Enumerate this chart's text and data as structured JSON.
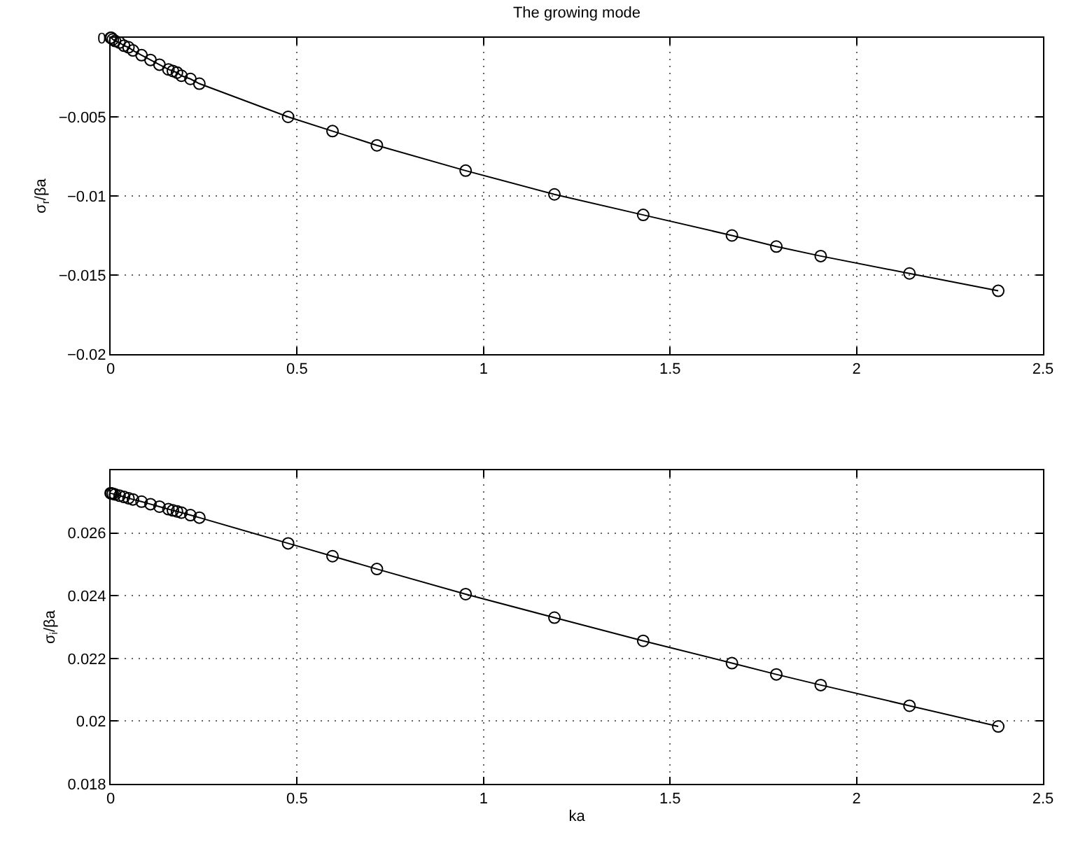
{
  "chart_data": [
    {
      "type": "line",
      "title": "The growing mode",
      "ylabel": "σ$_{r}$/βa",
      "marker": "circle",
      "line_style": "solid",
      "grid": true,
      "x": [
        0,
        0.002,
        0.006,
        0.012,
        0.024,
        0.036,
        0.048,
        0.06,
        0.083,
        0.107,
        0.131,
        0.155,
        0.167,
        0.178,
        0.19,
        0.214,
        0.238,
        0.476,
        0.595,
        0.714,
        0.952,
        1.19,
        1.428,
        1.666,
        1.785,
        1.904,
        2.142,
        2.38
      ],
      "series": [
        {
          "color": "#000000",
          "values": [
            0,
            0,
            -0.0001,
            -0.0002,
            -0.0003,
            -0.0005,
            -0.0006,
            -0.0008,
            -0.0011,
            -0.0014,
            -0.0017,
            -0.002,
            -0.0021,
            -0.0022,
            -0.0024,
            -0.0026,
            -0.0029,
            -0.005,
            -0.0059,
            -0.0068,
            -0.0084,
            -0.0099,
            -0.0112,
            -0.0125,
            -0.0132,
            -0.0138,
            -0.0149,
            -0.016
          ]
        }
      ],
      "xlim": [
        0,
        2.5
      ],
      "xticks": [
        0,
        0.5,
        1,
        1.5,
        2,
        2.5
      ],
      "ylim": [
        -0.02,
        0
      ],
      "yticks": [
        -0.02,
        -0.015,
        -0.01,
        -0.005,
        0
      ]
    },
    {
      "type": "line",
      "xlabel": "ka",
      "ylabel": "σ$_{i}$/βa",
      "marker": "circle",
      "line_style": "solid",
      "grid": true,
      "x": [
        0,
        0.002,
        0.006,
        0.012,
        0.024,
        0.036,
        0.048,
        0.06,
        0.083,
        0.107,
        0.131,
        0.155,
        0.167,
        0.178,
        0.19,
        0.214,
        0.238,
        0.476,
        0.595,
        0.714,
        0.952,
        1.19,
        1.428,
        1.666,
        1.785,
        1.904,
        2.142,
        2.38
      ],
      "series": [
        {
          "color": "#000000",
          "values": [
            0.02727,
            0.02726,
            0.02725,
            0.02723,
            0.02719,
            0.02715,
            0.02711,
            0.02707,
            0.027,
            0.02692,
            0.02684,
            0.02676,
            0.02672,
            0.02669,
            0.02665,
            0.02657,
            0.02649,
            0.02567,
            0.02526,
            0.02485,
            0.02405,
            0.0233,
            0.02256,
            0.02185,
            0.02149,
            0.02115,
            0.02049,
            0.01983
          ]
        }
      ],
      "xlim": [
        0,
        2.5
      ],
      "xticks": [
        0,
        0.5,
        1,
        1.5,
        2,
        2.5
      ],
      "ylim": [
        0.018,
        0.028
      ],
      "yticks": [
        0.018,
        0.02,
        0.022,
        0.024,
        0.026
      ]
    }
  ]
}
